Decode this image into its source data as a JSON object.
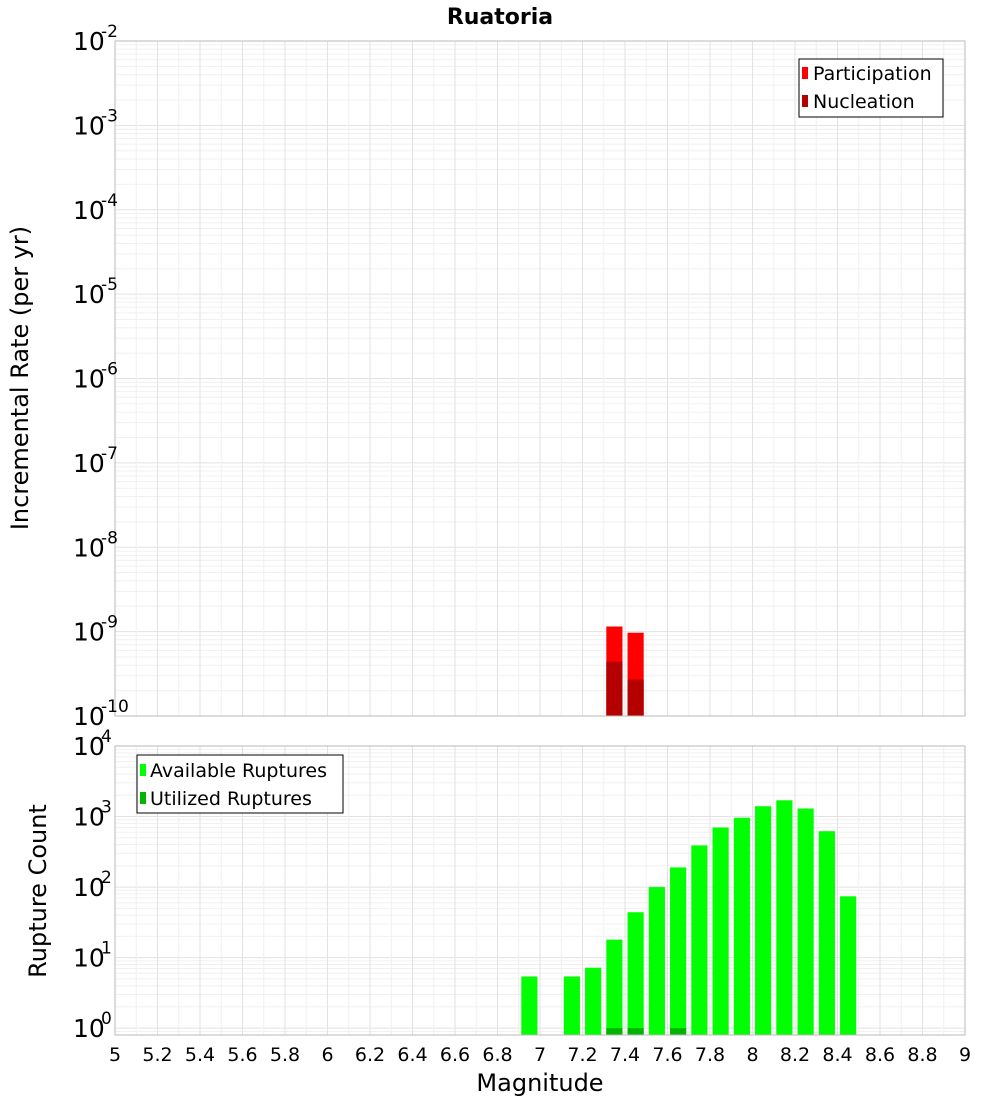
{
  "chart_data": [
    {
      "type": "bar",
      "title": "Ruatoria",
      "ylabel": "Incremental Rate (per yr)",
      "xlabel": "",
      "y_scale": "log",
      "ylim": [
        1e-10,
        0.01
      ],
      "xlim": [
        5,
        9
      ],
      "grid": true,
      "legend_position": "top-right",
      "y_ticks": [
        {
          "base": "10",
          "exp": "-2",
          "value": 0.01
        },
        {
          "base": "10",
          "exp": "-3",
          "value": 0.001
        },
        {
          "base": "10",
          "exp": "-4",
          "value": 0.0001
        },
        {
          "base": "10",
          "exp": "-5",
          "value": 1e-05
        },
        {
          "base": "10",
          "exp": "-6",
          "value": 1e-06
        },
        {
          "base": "10",
          "exp": "-7",
          "value": 1e-07
        },
        {
          "base": "10",
          "exp": "-8",
          "value": 1e-08
        },
        {
          "base": "10",
          "exp": "-9",
          "value": 1e-09
        },
        {
          "base": "10",
          "exp": "-10",
          "value": 1e-10
        }
      ],
      "x": [
        7.35,
        7.45
      ],
      "series": [
        {
          "name": "Participation",
          "color": "#ff0000",
          "values": [
            1.15e-09,
            9.7e-10
          ]
        },
        {
          "name": "Nucleation",
          "color": "#b40000",
          "values": [
            4.4e-10,
            2.7e-10
          ]
        }
      ]
    },
    {
      "type": "bar",
      "title": "",
      "ylabel": "Rupture Count",
      "xlabel": "Magnitude",
      "y_scale": "log",
      "ylim": [
        0.8,
        10000
      ],
      "xlim": [
        5,
        9
      ],
      "grid": true,
      "legend_position": "top-left",
      "y_ticks": [
        {
          "base": "10",
          "exp": "4",
          "value": 10000
        },
        {
          "base": "10",
          "exp": "3",
          "value": 1000
        },
        {
          "base": "10",
          "exp": "2",
          "value": 100
        },
        {
          "base": "10",
          "exp": "1",
          "value": 10
        },
        {
          "base": "10",
          "exp": "0",
          "value": 1
        }
      ],
      "x_ticks": [
        "5",
        "5.2",
        "5.4",
        "5.6",
        "5.8",
        "6",
        "6.2",
        "6.4",
        "6.6",
        "6.8",
        "7",
        "7.2",
        "7.4",
        "7.6",
        "7.8",
        "8",
        "8.2",
        "8.4",
        "8.6",
        "8.8",
        "9"
      ],
      "x": [
        6.95,
        7.15,
        7.25,
        7.35,
        7.45,
        7.55,
        7.65,
        7.75,
        7.85,
        7.95,
        8.05,
        8.15,
        8.25,
        8.35,
        8.45
      ],
      "series": [
        {
          "name": "Available Ruptures",
          "color": "#00ff00",
          "values": [
            5.4,
            5.4,
            7.2,
            18,
            44,
            100,
            190,
            390,
            700,
            960,
            1400,
            1700,
            1300,
            620,
            74
          ]
        },
        {
          "name": "Utilized Ruptures",
          "color": "#00b400",
          "values": [
            0,
            0,
            0,
            1,
            1,
            0,
            1,
            0,
            0,
            0,
            0,
            0,
            0,
            0,
            0
          ]
        }
      ]
    }
  ]
}
